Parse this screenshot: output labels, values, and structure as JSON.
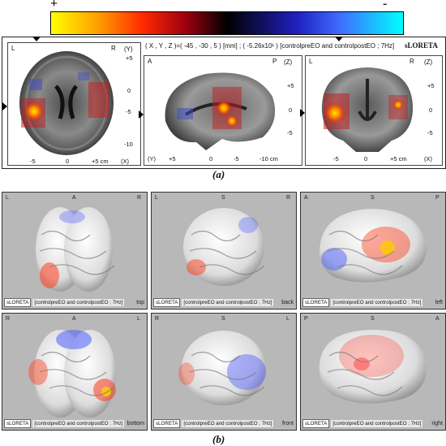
{
  "colorbar": {
    "plus_label": "+",
    "minus_label": "-"
  },
  "panel_a": {
    "info_line": "( X , Y , Z )=( -45 , -30 , 5 ) [mm] ;  ( -5.26x10¹ ) [controlpreEO and controlpostEO ; 7Hz]",
    "software": "sLORETA",
    "axial": {
      "left": "L",
      "right": "R",
      "axis_y": "(Y)",
      "axis_x": "(X)",
      "yticks": [
        "+5",
        "0",
        "-5",
        "-10"
      ],
      "xticks": [
        "-5",
        "0",
        "+5 cm"
      ]
    },
    "sagittal": {
      "left": "A",
      "right": "P",
      "axis_z": "(Z)",
      "axis_y": "(Y)",
      "zticks": [
        "+5",
        "0",
        "-5"
      ],
      "xticks": [
        "+5",
        "0",
        "-5",
        "-10 cm"
      ]
    },
    "coronal": {
      "left": "L",
      "right": "R",
      "axis_z": "(Z)",
      "axis_x": "(X)",
      "zticks": [
        "+5",
        "0",
        "-5"
      ],
      "xticks": [
        "-5",
        "0",
        "+5 cm"
      ]
    },
    "caption": "(a)"
  },
  "panel_b": {
    "caption": "(b)",
    "footer_tag": "sLORETA",
    "footer_text": "[controlpreEO and controlpostEO ; 7Hz]",
    "views": [
      {
        "l": "L",
        "m": "A",
        "r": "R",
        "name": "top"
      },
      {
        "l": "L",
        "m": "S",
        "r": "R",
        "name": "back"
      },
      {
        "l": "A",
        "m": "S",
        "r": "P",
        "name": "left"
      },
      {
        "l": "R",
        "m": "A",
        "r": "L",
        "name": "bottom"
      },
      {
        "l": "R",
        "m": "S",
        "r": "L",
        "name": "front"
      },
      {
        "l": "P",
        "m": "S",
        "r": "A",
        "name": "right"
      }
    ]
  },
  "colors": {
    "hot": "#ff3300",
    "peak": "#ffee00",
    "cold": "#4060ff",
    "panel_bg": "#b8b8b8"
  }
}
